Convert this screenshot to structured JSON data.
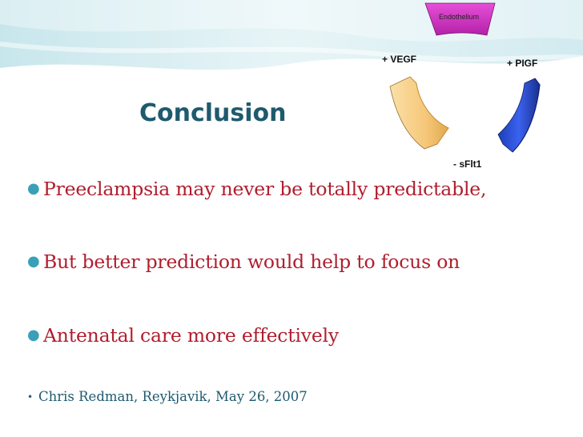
{
  "diagram": {
    "endothelium_label": "Endothelium",
    "vegf_label": "+ VEGF",
    "pigf_label": "+ PIGF",
    "sflt1_label": "- sFlt1"
  },
  "slide": {
    "title": "Conclusion",
    "bullets": [
      "Preeclampsia may never be totally predictable,",
      "But better prediction would help to focus on",
      "Antenatal care more effectively"
    ],
    "citation": "Chris Redman, Reykjavik, May 26, 2007"
  },
  "colors": {
    "title": "#1e5a6e",
    "bullet_text": "#b01e2e",
    "bullet_marker": "#3aa0b8",
    "endothelium": "#d633c9",
    "vegf": "#f6c87a",
    "pigf": "#2f55e0"
  },
  "icons": {
    "bullet": "bullet-dot-icon"
  }
}
